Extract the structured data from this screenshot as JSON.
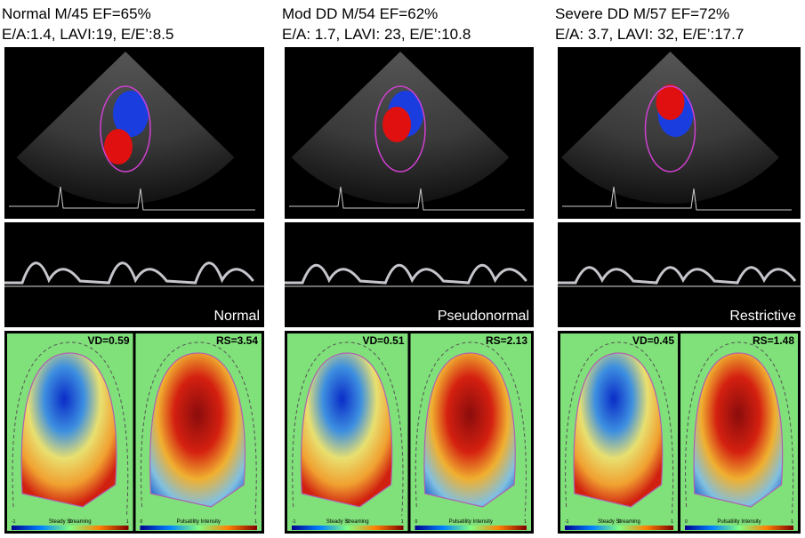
{
  "panels": [
    {
      "title": "Normal  M/45  EF=65%",
      "subtitle": "E/A:1.4, LAVI:19, E/E’:8.5",
      "pattern": "Normal",
      "vd": "VD=0.59",
      "rs": "RS=3.54",
      "left_bar": {
        "label": "Steady Streaming",
        "ticks": [
          "-1",
          "0",
          "1"
        ]
      },
      "right_bar": {
        "label": "Pulsatility Intensity",
        "ticks": [
          "0",
          "1"
        ]
      }
    },
    {
      "title": "Mod DD  M/54 EF=62%",
      "subtitle": "E/A: 1.7, LAVI: 23, E/E’:10.8",
      "pattern": "Pseudonormal",
      "vd": "VD=0.51",
      "rs": "RS=2.13",
      "left_bar": {
        "label": "Steady Streaming",
        "ticks": [
          "-1",
          "0",
          "1"
        ]
      },
      "right_bar": {
        "label": "Pulsatility Intensity",
        "ticks": [
          "0",
          "1"
        ]
      }
    },
    {
      "title": "Severe  DD  M/57 EF=72%",
      "subtitle": "E/A: 3.7, LAVI: 32, E/E’:17.7",
      "pattern": "Restrictive",
      "vd": "VD=0.45",
      "rs": "RS=1.48",
      "left_bar": {
        "label": "Steady Streaming",
        "ticks": [
          "-1",
          "0",
          "1"
        ]
      },
      "right_bar": {
        "label": "Pulsatility Intensity",
        "ticks": [
          "0",
          "1"
        ]
      }
    }
  ]
}
